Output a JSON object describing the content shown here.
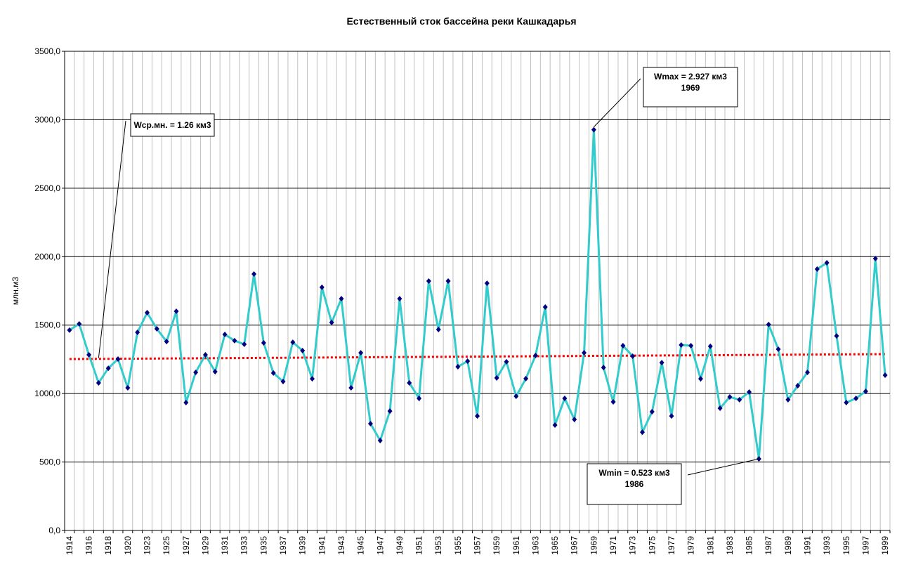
{
  "chart_data": {
    "type": "line",
    "title": "Естественный сток бассейна реки Кашкадарья",
    "xlabel": "",
    "ylabel": "млн.м3",
    "ylim": [
      0,
      3500
    ],
    "yticks": [
      "0,0",
      "500,0",
      "1000,0",
      "1500,0",
      "2000,0",
      "2500,0",
      "3000,0",
      "3500,0"
    ],
    "grid": true,
    "legend": "none",
    "categories": [
      "1914",
      "1915",
      "1916",
      "1917",
      "1918",
      "1919",
      "1920",
      "1922",
      "1923",
      "1924",
      "1925",
      "1926",
      "1927",
      "1928",
      "1929",
      "1930",
      "1931",
      "1932",
      "1933",
      "1934",
      "1935",
      "1936",
      "1937",
      "1938",
      "1939",
      "1940",
      "1941",
      "1942",
      "1943",
      "1944",
      "1945",
      "1946",
      "1947",
      "1948",
      "1949",
      "1950",
      "1951",
      "1952",
      "1953",
      "1954",
      "1955",
      "1956",
      "1957",
      "1958",
      "1959",
      "1960",
      "1961",
      "1962",
      "1963",
      "1964",
      "1965",
      "1966",
      "1967",
      "1968",
      "1969",
      "1970",
      "1971",
      "1972",
      "1973",
      "1974",
      "1975",
      "1976",
      "1977",
      "1978",
      "1979",
      "1980",
      "1981",
      "1982",
      "1983",
      "1984",
      "1985",
      "1986",
      "1987",
      "1988",
      "1989",
      "1990",
      "1991",
      "1992",
      "1993",
      "1994",
      "1995",
      "1996",
      "1997",
      "1998",
      "1999"
    ],
    "tick_labels": [
      "1914",
      "1916",
      "1918",
      "1920",
      "1923",
      "1925",
      "1927",
      "1929",
      "1931",
      "1933",
      "1935",
      "1937",
      "1939",
      "1941",
      "1943",
      "1945",
      "1947",
      "1949",
      "1951",
      "1953",
      "1955",
      "1957",
      "1959",
      "1961",
      "1963",
      "1965",
      "1967",
      "1969",
      "1971",
      "1973",
      "1975",
      "1977",
      "1979",
      "1981",
      "1983",
      "1985",
      "1987",
      "1989",
      "1991",
      "1993",
      "1995",
      "1997",
      "1999"
    ],
    "series": [
      {
        "name": "Сток",
        "color": "#33CCCC",
        "marker_color": "#000080",
        "values": [
          1463,
          1509,
          1283,
          1078,
          1185,
          1252,
          1042,
          1447,
          1591,
          1473,
          1380,
          1601,
          934,
          1155,
          1283,
          1160,
          1432,
          1386,
          1360,
          1873,
          1370,
          1150,
          1088,
          1375,
          1314,
          1108,
          1776,
          1519,
          1693,
          1042,
          1298,
          780,
          657,
          872,
          1693,
          1078,
          965,
          1822,
          1468,
          1822,
          1196,
          1237,
          836,
          1806,
          1114,
          1232,
          980,
          1109,
          1278,
          1632,
          770,
          965,
          811,
          1298,
          2927,
          1190,
          939,
          1350,
          1273,
          718,
          867,
          1226,
          836,
          1355,
          1350,
          1108,
          1345,
          893,
          975,
          955,
          1011,
          523,
          1504,
          1324,
          955,
          1057,
          1155,
          1909,
          1955,
          1421,
          934,
          965,
          1016,
          1986,
          1134
        ]
      }
    ],
    "trendline": {
      "type": "linear",
      "color": "#FF0000",
      "start": 1252,
      "end": 1288
    },
    "annotations": [
      {
        "id": "mean",
        "lines": [
          "Wср.мн. = 1.26 км3"
        ],
        "year": "1917",
        "value": 1260
      },
      {
        "id": "max",
        "lines": [
          "Wmax = 2.927 км3",
          "1969"
        ],
        "year": "1969",
        "value": 2927
      },
      {
        "id": "min",
        "lines": [
          "Wmin = 0.523 км3",
          "1986"
        ],
        "year": "1986",
        "value": 523
      }
    ]
  }
}
